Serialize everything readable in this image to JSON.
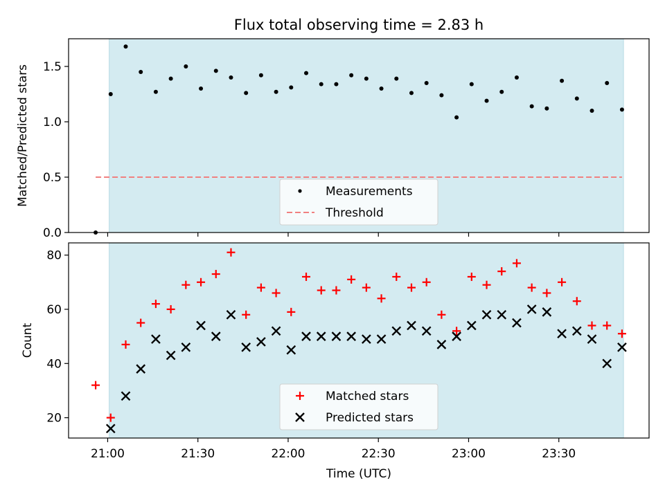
{
  "chart_data": [
    {
      "type": "scatter",
      "title": "Flux total observing time = 2.83 h",
      "ylabel": "Matched/Predicted stars",
      "xlabel": "",
      "x_unit": "minutes after 21:00 UTC",
      "xlim": [
        -13,
        180
      ],
      "ylim": [
        0,
        1.75
      ],
      "yticks": [
        0.0,
        0.5,
        1.0,
        1.5
      ],
      "ytick_labels": [
        "0.0",
        "0.5",
        "1.0",
        "1.5"
      ],
      "highlight_span": [
        0.5,
        171.5
      ],
      "highlight_color": "#d4ebf1",
      "legend": {
        "placement": "lower-center"
      },
      "series": [
        {
          "name": "Measurements",
          "marker": "dot",
          "color": "#000000",
          "x": [
            -4,
            1,
            6,
            11,
            16,
            21,
            26,
            31,
            36,
            41,
            46,
            51,
            56,
            61,
            66,
            71,
            76,
            81,
            86,
            91,
            96,
            101,
            106,
            111,
            116,
            121,
            126,
            131,
            136,
            141,
            146,
            151,
            156,
            161,
            166,
            171
          ],
          "y": [
            0.0,
            1.25,
            1.68,
            1.45,
            1.27,
            1.39,
            1.5,
            1.3,
            1.46,
            1.4,
            1.26,
            1.42,
            1.27,
            1.31,
            1.44,
            1.34,
            1.34,
            1.42,
            1.39,
            1.3,
            1.39,
            1.26,
            1.35,
            1.24,
            1.04,
            1.34,
            1.19,
            1.27,
            1.4,
            1.14,
            1.12,
            1.37,
            1.21,
            1.1,
            1.35,
            1.11
          ]
        },
        {
          "name": "Threshold",
          "style": "dashed",
          "color": "#f08080",
          "x": [
            -4,
            171
          ],
          "y": [
            0.5,
            0.5
          ]
        }
      ]
    },
    {
      "type": "scatter",
      "title": "",
      "xlabel": "Time (UTC)",
      "ylabel": "Count",
      "x_unit": "minutes after 21:00 UTC",
      "xlim": [
        -13,
        180
      ],
      "ylim": [
        12.5,
        84.5
      ],
      "yticks": [
        20,
        40,
        60,
        80
      ],
      "ytick_labels": [
        "20",
        "40",
        "60",
        "80"
      ],
      "xticks": [
        0,
        30,
        60,
        90,
        120,
        150
      ],
      "xtick_labels": [
        "21:00",
        "21:30",
        "22:00",
        "22:30",
        "23:00",
        "23:30"
      ],
      "highlight_span": [
        0.5,
        171.5
      ],
      "highlight_color": "#d4ebf1",
      "legend": {
        "placement": "lower-center"
      },
      "series": [
        {
          "name": "Matched stars",
          "marker": "plus",
          "color": "#ff0000",
          "x": [
            -4,
            1,
            6,
            11,
            16,
            21,
            26,
            31,
            36,
            41,
            46,
            51,
            56,
            61,
            66,
            71,
            76,
            81,
            86,
            91,
            96,
            101,
            106,
            111,
            116,
            121,
            126,
            131,
            136,
            141,
            146,
            151,
            156,
            161,
            166,
            171
          ],
          "y": [
            32,
            20,
            47,
            55,
            62,
            60,
            69,
            70,
            73,
            81,
            58,
            68,
            66,
            59,
            72,
            67,
            67,
            71,
            68,
            64,
            72,
            68,
            70,
            58,
            52,
            72,
            69,
            74,
            77,
            68,
            66,
            70,
            63,
            54,
            54,
            51
          ]
        },
        {
          "name": "Predicted stars",
          "marker": "x",
          "color": "#000000",
          "x": [
            1,
            6,
            11,
            16,
            21,
            26,
            31,
            36,
            41,
            46,
            51,
            56,
            61,
            66,
            71,
            76,
            81,
            86,
            91,
            96,
            101,
            106,
            111,
            116,
            121,
            126,
            131,
            136,
            141,
            146,
            151,
            156,
            161,
            166,
            171
          ],
          "y": [
            16,
            28,
            38,
            49,
            43,
            46,
            54,
            50,
            58,
            46,
            48,
            52,
            45,
            50,
            50,
            50,
            50,
            49,
            49,
            52,
            54,
            52,
            47,
            50,
            54,
            58,
            58,
            55,
            60,
            59,
            51,
            52,
            49,
            40,
            46
          ]
        }
      ]
    }
  ]
}
